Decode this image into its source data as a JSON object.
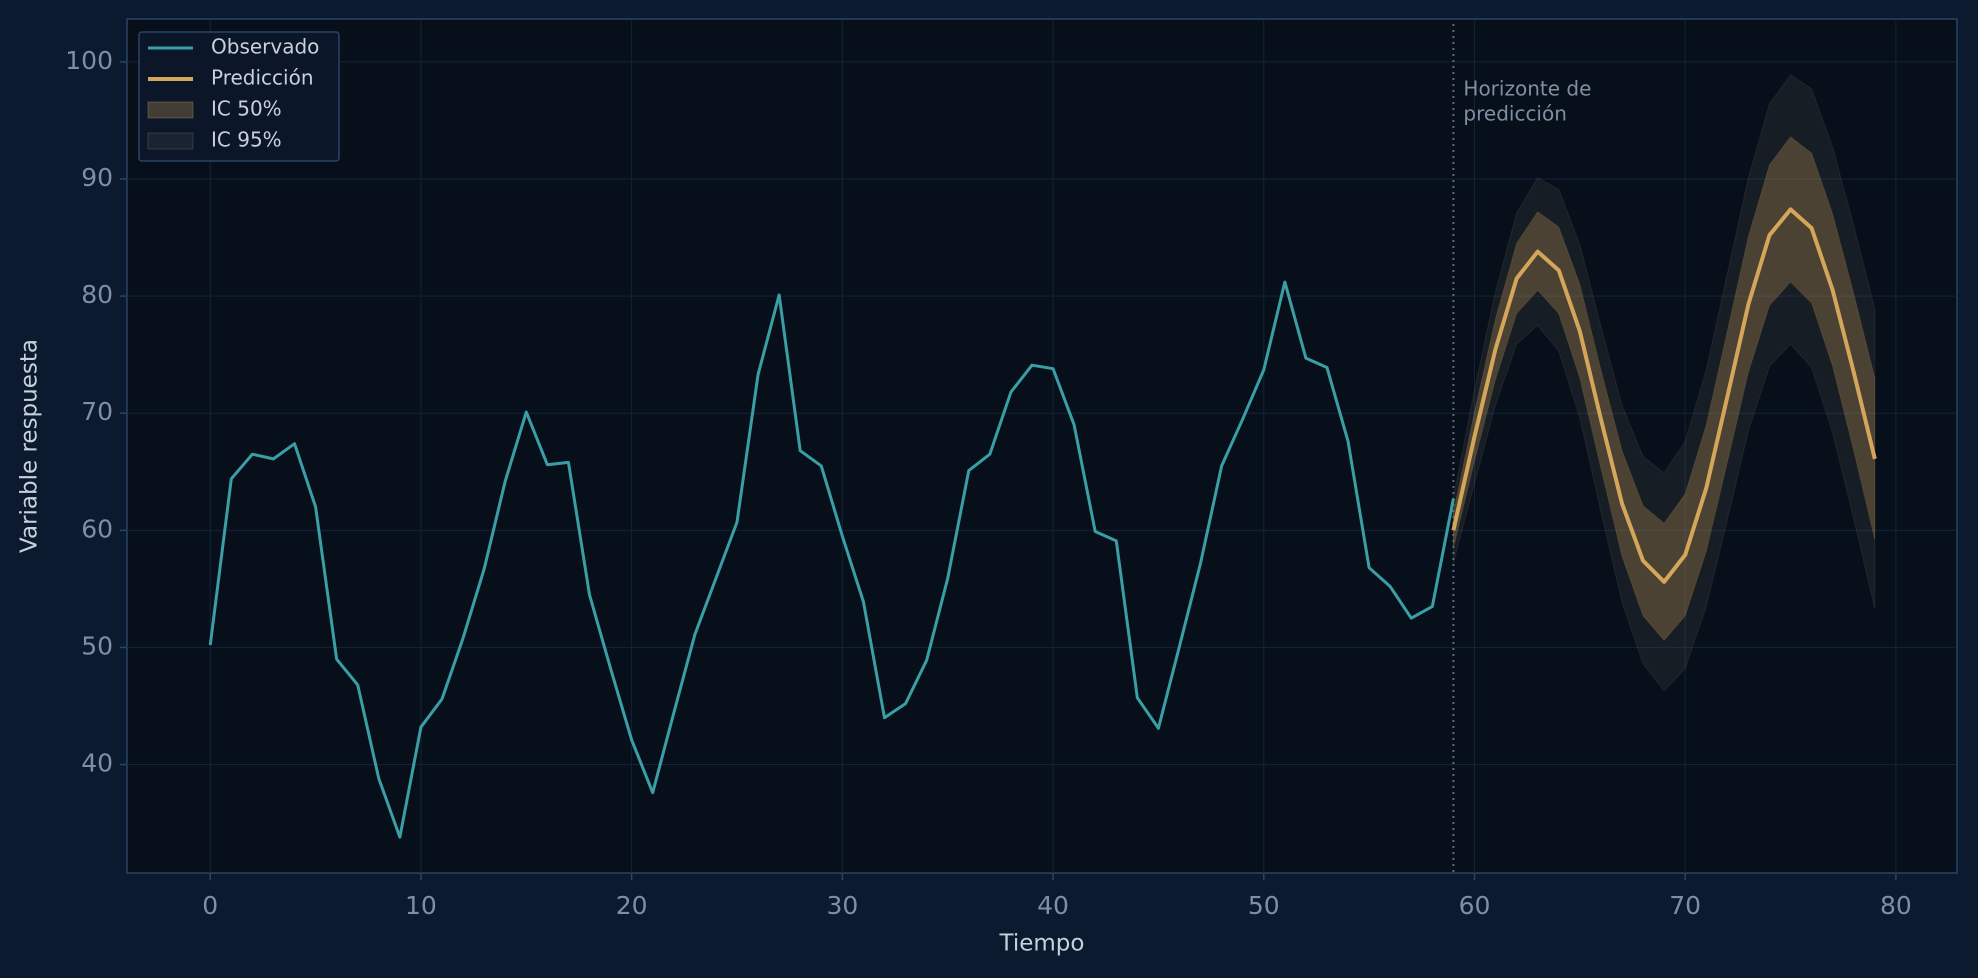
{
  "chart_data": {
    "type": "line",
    "xlabel": "Tiempo",
    "ylabel": "Variable respuesta",
    "xlim": [
      -3.95,
      82.9
    ],
    "ylim": [
      30.74,
      103.66
    ],
    "xticks": [
      0,
      10,
      20,
      30,
      40,
      50,
      60,
      70,
      80
    ],
    "yticks": [
      40,
      50,
      60,
      70,
      80,
      90,
      100
    ],
    "grid": true,
    "legend": "upper left",
    "vline": 59,
    "annotation": [
      "Horizonte de",
      "predicción"
    ],
    "series": [
      {
        "name": "Observado",
        "color": "#3a9ea5",
        "x": [
          0,
          1,
          2,
          3,
          4,
          5,
          6,
          7,
          8,
          9,
          10,
          11,
          12,
          13,
          14,
          15,
          16,
          17,
          18,
          19,
          20,
          21,
          22,
          23,
          24,
          25,
          26,
          27,
          28,
          29,
          30,
          31,
          32,
          33,
          34,
          35,
          36,
          37,
          38,
          39,
          40,
          41,
          42,
          43,
          44,
          45,
          46,
          47,
          48,
          49,
          50,
          51,
          52,
          53,
          54,
          55,
          56,
          57,
          58,
          59
        ],
        "values": [
          50.2,
          64.4,
          66.5,
          66.1,
          67.4,
          62,
          49,
          46.8,
          38.8,
          33.8,
          43.2,
          45.6,
          50.8,
          56.7,
          64.2,
          70.1,
          65.6,
          65.8,
          54.5,
          48.2,
          42.1,
          37.6,
          44.4,
          51.1,
          55.9,
          60.7,
          73.3,
          80.1,
          66.8,
          65.5,
          59.5,
          53.9,
          44,
          45.2,
          48.9,
          55.9,
          65.1,
          66.5,
          71.8,
          74.1,
          73.8,
          69,
          59.9,
          59.1,
          45.7,
          43.1,
          50.1,
          57.2,
          65.5,
          69.5,
          73.7,
          81.2,
          74.7,
          73.9,
          67.6,
          56.8,
          55.2,
          52.5,
          53.5,
          62.7
        ]
      },
      {
        "name": "Predicción",
        "color": "#d4a65a",
        "x": [
          59,
          60,
          61,
          62,
          63,
          64,
          65,
          66,
          67,
          68,
          69,
          70,
          71,
          72,
          73,
          74,
          75,
          76,
          77,
          78,
          79
        ],
        "values": [
          60,
          68,
          75.5,
          81.5,
          83.8,
          82.2,
          77,
          69.5,
          62.3,
          57.4,
          55.6,
          57.9,
          63.6,
          71.4,
          79.3,
          85.2,
          87.4,
          85.8,
          80.5,
          73.5,
          66.1
        ]
      }
    ],
    "bands": [
      {
        "name": "IC 50%",
        "color": "#d4a65a",
        "x": [
          59,
          60,
          61,
          62,
          63,
          64,
          65,
          66,
          67,
          68,
          69,
          70,
          71,
          72,
          73,
          74,
          75,
          76,
          77,
          78,
          79
        ],
        "lower": [
          58.5,
          65.9,
          72.9,
          78.5,
          80.5,
          78.5,
          73,
          65.3,
          57.8,
          52.7,
          50.6,
          52.7,
          58.2,
          65.8,
          73.5,
          79.2,
          81.2,
          79.4,
          74,
          66.8,
          59.2
        ],
        "upper": [
          61.5,
          70.1,
          78.1,
          84.5,
          87.2,
          85.9,
          81,
          73.7,
          66.8,
          62.1,
          60.6,
          63.1,
          69,
          77,
          85.1,
          91.2,
          93.6,
          92.2,
          87,
          80.2,
          73
        ]
      },
      {
        "name": "IC 95%",
        "color": "#8a8070",
        "x": [
          59,
          60,
          61,
          62,
          63,
          64,
          65,
          66,
          67,
          68,
          69,
          70,
          71,
          72,
          73,
          74,
          75,
          76,
          77,
          78,
          79
        ],
        "lower": [
          57.2,
          64,
          70.7,
          75.9,
          77.5,
          75.3,
          69.6,
          61.6,
          53.9,
          48.6,
          46.3,
          48.2,
          53.5,
          60.9,
          68.5,
          74,
          75.9,
          73.9,
          68.3,
          61,
          53.3
        ],
        "upper": [
          62.8,
          72,
          80.4,
          87.1,
          90.1,
          89.1,
          84.4,
          77.4,
          70.7,
          66.3,
          64.9,
          67.6,
          73.7,
          81.9,
          90.1,
          96.4,
          98.9,
          97.7,
          92.7,
          86,
          78.9
        ]
      }
    ]
  }
}
